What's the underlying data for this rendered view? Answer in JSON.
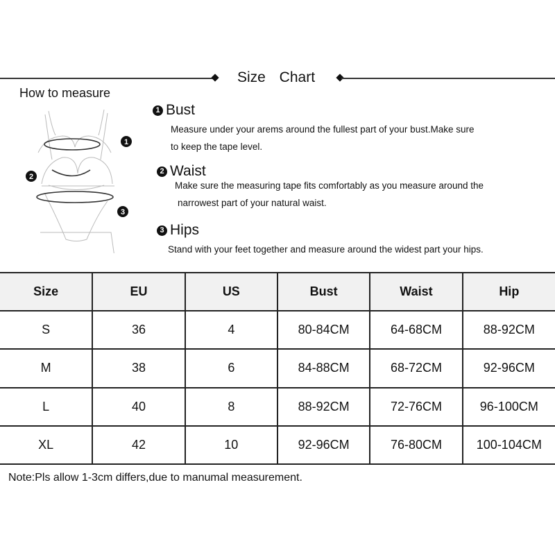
{
  "header": {
    "title": "Size Chart"
  },
  "how_to": {
    "label": "How to measure",
    "steps": [
      {
        "number": "1",
        "title": "Bust",
        "lines": [
          "Measure under your arems around the fullest part of your bust.Make sure",
          "to keep the tape level."
        ]
      },
      {
        "number": "2",
        "title": "Waist",
        "lines": [
          "Make sure the measuring tape fits comfortably as you measure around the",
          "narrowest part of your natural waist."
        ]
      },
      {
        "number": "3",
        "title": "Hips",
        "lines": [
          "Stand with your feet together and measure around the widest part your hips."
        ]
      }
    ],
    "illustration_labels": [
      "1",
      "2",
      "3"
    ]
  },
  "table": {
    "headers": [
      "Size",
      "EU",
      "US",
      "Bust",
      "Waist",
      "Hip"
    ],
    "rows": [
      [
        "S",
        "36",
        "4",
        "80-84CM",
        "64-68CM",
        "88-92CM"
      ],
      [
        "M",
        "38",
        "6",
        "84-88CM",
        "68-72CM",
        "92-96CM"
      ],
      [
        "L",
        "40",
        "8",
        "88-92CM",
        "72-76CM",
        "96-100CM"
      ],
      [
        "XL",
        "42",
        "10",
        "92-96CM",
        "76-80CM",
        "100-104CM"
      ]
    ]
  },
  "note": "Note:Pls allow 1-3cm differs,due to manumal measurement."
}
